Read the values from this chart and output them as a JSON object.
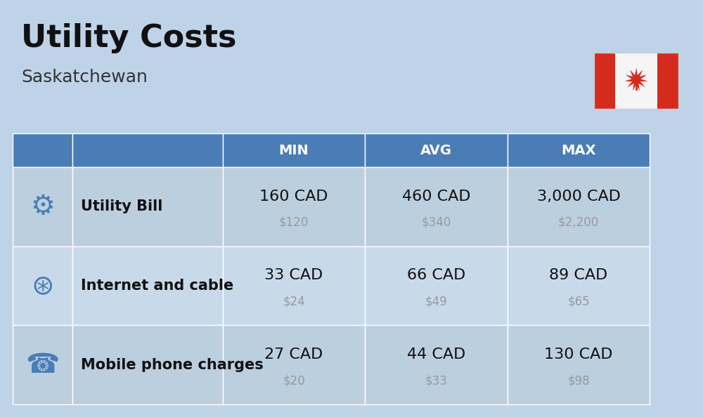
{
  "title": "Utility Costs",
  "subtitle": "Saskatchewan",
  "background_color": "#bed3e8",
  "header_bg_color": "#4a7db5",
  "header_text_color": "#ffffff",
  "row_bg_color_even": "#c8daea",
  "row_bg_color_odd": "#bccfdf",
  "col_headers": [
    "MIN",
    "AVG",
    "MAX"
  ],
  "rows": [
    {
      "label": "Utility Bill",
      "min_cad": "160 CAD",
      "min_usd": "$120",
      "avg_cad": "460 CAD",
      "avg_usd": "$340",
      "max_cad": "3,000 CAD",
      "max_usd": "$2,200"
    },
    {
      "label": "Internet and cable",
      "min_cad": "33 CAD",
      "min_usd": "$24",
      "avg_cad": "66 CAD",
      "avg_usd": "$49",
      "max_cad": "89 CAD",
      "max_usd": "$65"
    },
    {
      "label": "Mobile phone charges",
      "min_cad": "27 CAD",
      "min_usd": "$20",
      "avg_cad": "44 CAD",
      "avg_usd": "$33",
      "max_cad": "130 CAD",
      "max_usd": "$98"
    }
  ],
  "title_fontsize": 32,
  "subtitle_fontsize": 18,
  "header_fontsize": 14,
  "cell_fontsize": 16,
  "cell_sub_fontsize": 12,
  "label_fontsize": 15,
  "flag_red": "#d52b1e",
  "flag_white": "#f5f5f5",
  "title_color": "#111111",
  "subtitle_color": "#333333",
  "cell_color": "#111111",
  "cell_sub_color": "#999999"
}
